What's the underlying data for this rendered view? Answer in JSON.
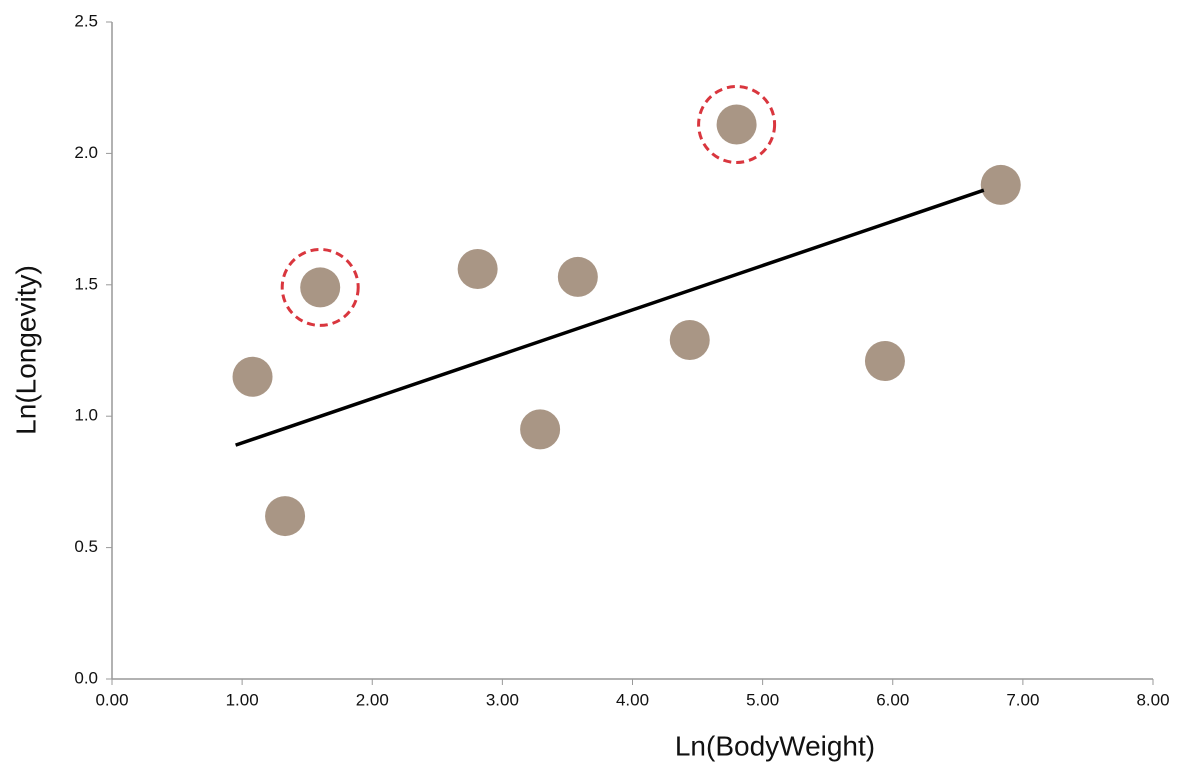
{
  "chart_data": {
    "type": "scatter",
    "x_label": "Ln(BodyWeight)",
    "y_label": "Ln(Longevity)",
    "x": [
      1.33,
      1.08,
      1.6,
      2.81,
      3.29,
      3.58,
      4.44,
      4.8,
      5.94,
      6.83
    ],
    "y": [
      0.62,
      1.15,
      1.49,
      1.56,
      0.95,
      1.53,
      1.29,
      2.11,
      1.21,
      1.88
    ],
    "color": "#9a8470",
    "ringed": [
      false,
      false,
      true,
      false,
      false,
      false,
      false,
      true,
      false,
      false
    ],
    "ring_color": "#d9363e",
    "trend": {
      "x": [
        0.95,
        6.7
      ],
      "y": [
        0.89,
        1.86
      ],
      "color": "#000000"
    },
    "xlim": [
      0,
      8
    ],
    "ylim": [
      0,
      2.5
    ],
    "xticks": [
      {
        "value": 0,
        "label": "0.00"
      },
      {
        "value": 1,
        "label": "1.00"
      },
      {
        "value": 2,
        "label": "2.00"
      },
      {
        "value": 3,
        "label": "3.00"
      },
      {
        "value": 4,
        "label": "4.00"
      },
      {
        "value": 5,
        "label": "5.00"
      },
      {
        "value": 6,
        "label": "6.00"
      },
      {
        "value": 7,
        "label": "7.00"
      },
      {
        "value": 8,
        "label": "8.00"
      }
    ],
    "yticks": [
      {
        "value": 0,
        "label": "0.0"
      },
      0.5,
      {
        "value": 1,
        "label": "1.0"
      },
      1.5,
      {
        "value": 2,
        "label": "2.0"
      },
      2.5
    ],
    "grid": false
  }
}
